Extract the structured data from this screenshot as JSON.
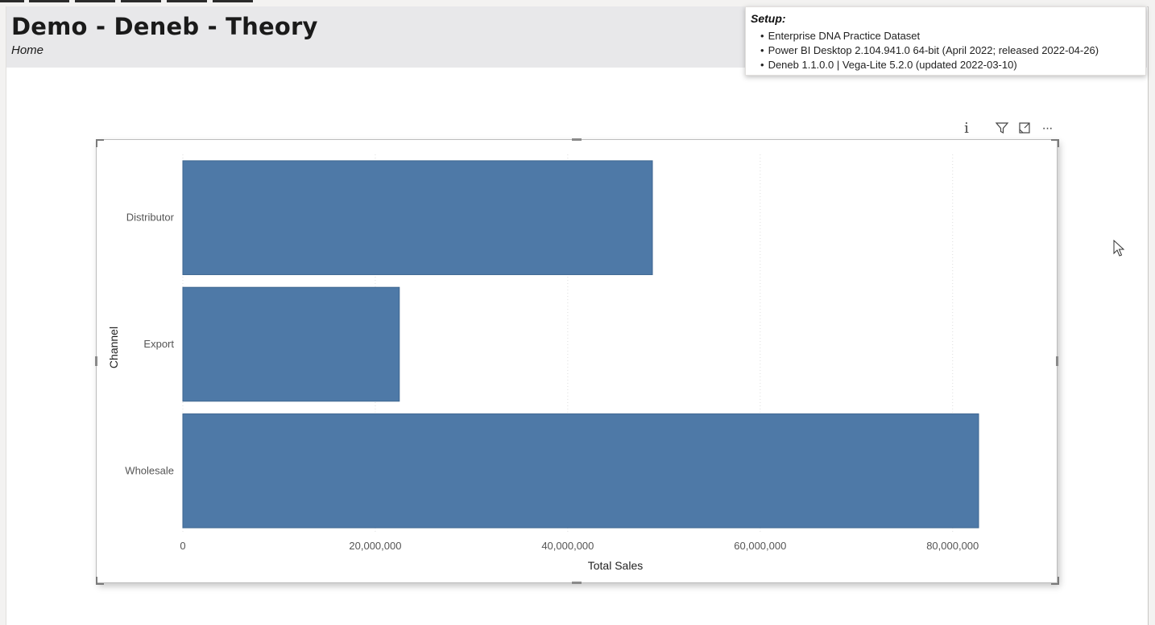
{
  "report": {
    "title": "Demo - Deneb - Theory",
    "breadcrumb": "Home"
  },
  "setup": {
    "heading": "Setup:",
    "items": [
      "Enterprise DNA Practice Dataset",
      "Power BI Desktop 2.104.941.0 64-bit (April 2022; released 2022-04-26)",
      "Deneb 1.1.0.0 | Vega-Lite 5.2.0 (updated 2022-03-10)"
    ]
  },
  "visual_header": {
    "icons": [
      "info-icon",
      "filter-icon",
      "focus-mode-icon",
      "more-options-icon"
    ],
    "info_glyph": "i",
    "more_glyph": "···"
  },
  "colors": {
    "bar": "#4e79a7",
    "header_band": "#e8e8ea",
    "gridline": "#dddddd"
  },
  "chart_data": {
    "type": "bar",
    "orientation": "horizontal",
    "categories": [
      "Distributor",
      "Export",
      "Wholesale"
    ],
    "values": [
      48800000,
      22500000,
      82700000
    ],
    "xlabel": "Total Sales",
    "ylabel": "Channel",
    "xlim": [
      0,
      82700000
    ],
    "x_ticks": [
      0,
      20000000,
      40000000,
      60000000,
      80000000
    ],
    "x_tick_labels": [
      "0",
      "20,000,000",
      "40,000,000",
      "60,000,000",
      "80,000,000"
    ],
    "grid": true
  }
}
